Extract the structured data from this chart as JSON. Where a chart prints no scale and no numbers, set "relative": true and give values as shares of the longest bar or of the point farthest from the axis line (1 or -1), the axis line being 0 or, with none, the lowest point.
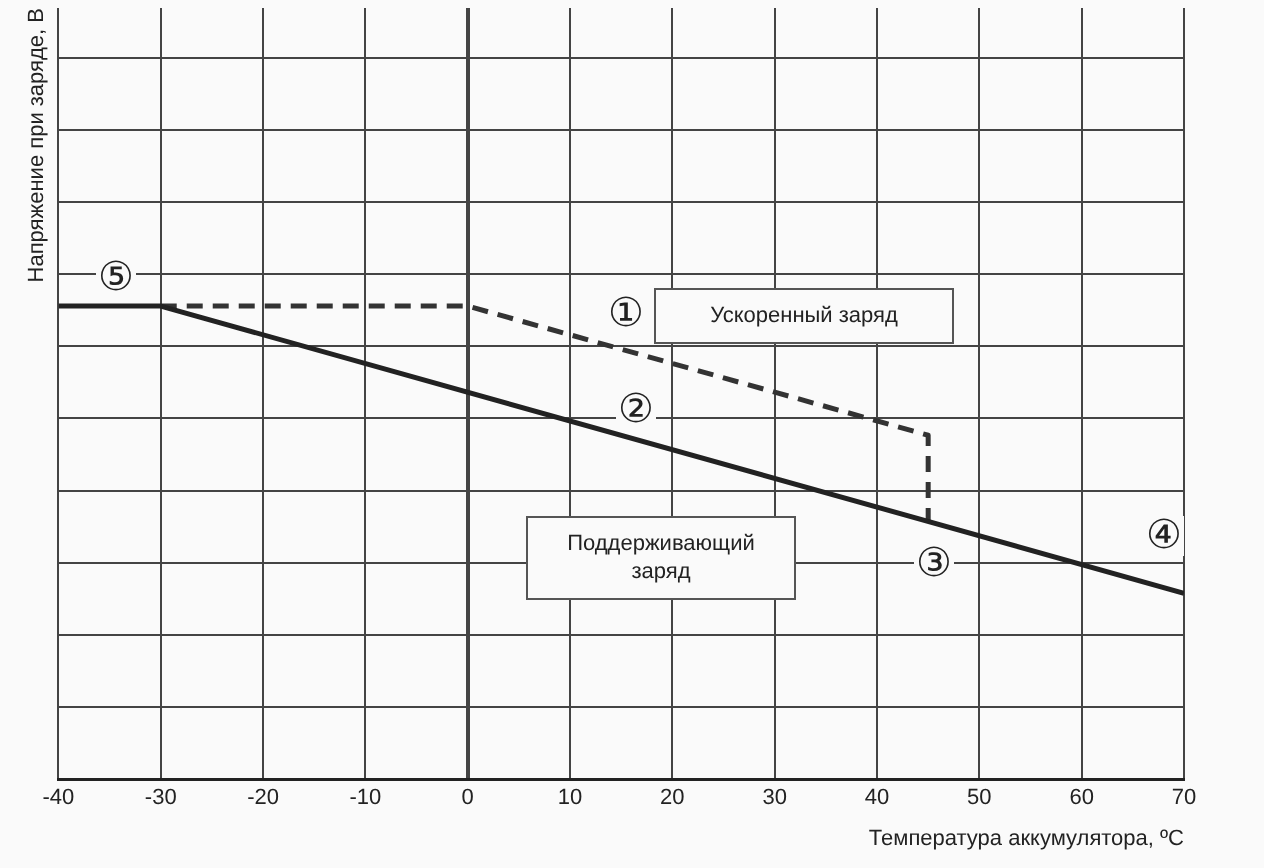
{
  "chart_data": {
    "type": "line",
    "relative": true,
    "xlabel": "Температура аккумулятора, ºC",
    "ylabel": "Напряжение при заряде, В",
    "xlim": [
      -40,
      70
    ],
    "xticks": [
      -40,
      -30,
      -20,
      -10,
      0,
      10,
      20,
      30,
      40,
      50,
      60,
      70
    ],
    "grid": true,
    "legend": false,
    "marker": "none",
    "series": [
      {
        "color": "#222222",
        "line_style": "solid",
        "x": [
          -40,
          -30,
          70
        ],
        "values": [
          1,
          1,
          0.393
        ]
      },
      {
        "color": "#333333",
        "line_style": "dashed",
        "x": [
          -30,
          0,
          45,
          45
        ],
        "values": [
          1,
          1,
          0.727,
          0.548
        ]
      }
    ],
    "annotations": [
      "⑤",
      "①",
      "②",
      "③",
      "④",
      "Ускоренный заряд",
      "Поддерживающий заряд"
    ]
  }
}
